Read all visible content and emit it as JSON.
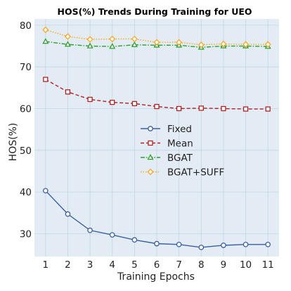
{
  "chart_data": {
    "type": "line",
    "title": "HOS(%) Trends During Training for UEO",
    "xlabel": "Training Epochs",
    "ylabel": "HOS(%)",
    "x": [
      1,
      2,
      3,
      4,
      5,
      6,
      7,
      8,
      9,
      10,
      11
    ],
    "xlim": [
      0.5,
      11.5
    ],
    "ylim": [
      24.5,
      81.5
    ],
    "yticks": [
      30,
      40,
      50,
      60,
      70,
      80
    ],
    "grid": true,
    "legend_position": "center-right",
    "background_color": "#e3ecf5",
    "series": [
      {
        "name": "Fixed",
        "color": "#3a5fa0",
        "line_style": "solid",
        "marker": "circle",
        "values": [
          40.3,
          34.7,
          30.8,
          29.7,
          28.5,
          27.6,
          27.4,
          26.7,
          27.2,
          27.4,
          27.4
        ]
      },
      {
        "name": "Mean",
        "color": "#b22222",
        "line_style": "dashed",
        "marker": "square",
        "values": [
          67.0,
          64.0,
          62.2,
          61.5,
          61.2,
          60.5,
          60.0,
          60.1,
          60.0,
          59.9,
          59.9
        ]
      },
      {
        "name": "BGAT",
        "color": "#2ca02c",
        "line_style": "dashdot",
        "marker": "triangle",
        "values": [
          76.1,
          75.4,
          75.0,
          74.9,
          75.3,
          75.2,
          75.2,
          74.7,
          75.0,
          75.0,
          74.9
        ]
      },
      {
        "name": "BGAT+SUFF",
        "color": "#f5a623",
        "line_style": "dotted",
        "marker": "diamond",
        "values": [
          78.9,
          77.3,
          76.6,
          76.7,
          76.7,
          75.9,
          75.9,
          75.3,
          75.5,
          75.4,
          75.4
        ]
      }
    ]
  }
}
